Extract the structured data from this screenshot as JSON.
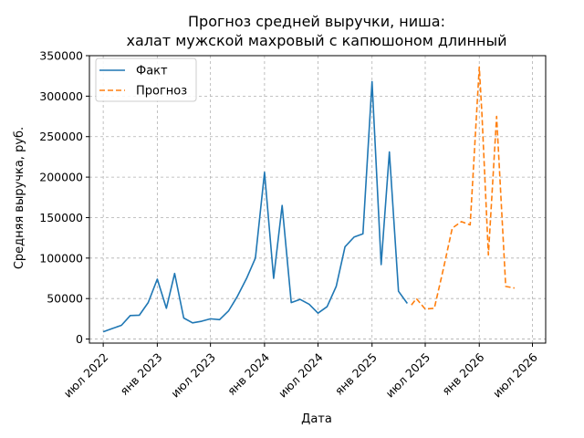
{
  "chart_data": {
    "type": "line",
    "title": [
      "Прогноз средней выручки, ниша:",
      "халат мужской махровый с капюшоном длинный"
    ],
    "xlabel": "Дата",
    "ylabel": "Средняя выручка, руб.",
    "ylim": [
      -5000,
      350000
    ],
    "yticks": [
      0,
      50000,
      100000,
      150000,
      200000,
      250000,
      300000,
      350000
    ],
    "xlim": [
      "2022-05-15",
      "2026-08-15"
    ],
    "xticks": [
      {
        "date": "2022-07-01",
        "label": "июл 2022"
      },
      {
        "date": "2023-01-01",
        "label": "янв 2023"
      },
      {
        "date": "2023-07-01",
        "label": "июл 2023"
      },
      {
        "date": "2024-01-01",
        "label": "янв 2024"
      },
      {
        "date": "2024-07-01",
        "label": "июл 2024"
      },
      {
        "date": "2025-01-01",
        "label": "янв 2025"
      },
      {
        "date": "2025-07-01",
        "label": "июл 2025"
      },
      {
        "date": "2026-01-01",
        "label": "янв 2026"
      },
      {
        "date": "2026-07-01",
        "label": "июл 2026"
      }
    ],
    "grid": true,
    "legend": "top-left",
    "series": [
      {
        "name": "Факт",
        "color": "#1f77b4",
        "style": "solid",
        "points": [
          [
            "2022-07-01",
            9000
          ],
          [
            "2022-08-01",
            13000
          ],
          [
            "2022-09-01",
            17000
          ],
          [
            "2022-10-01",
            29000
          ],
          [
            "2022-11-01",
            29500
          ],
          [
            "2022-12-01",
            45000
          ],
          [
            "2023-01-01",
            74000
          ],
          [
            "2023-02-01",
            38000
          ],
          [
            "2023-03-01",
            81000
          ],
          [
            "2023-04-01",
            26000
          ],
          [
            "2023-05-01",
            20000
          ],
          [
            "2023-06-01",
            22000
          ],
          [
            "2023-07-01",
            25000
          ],
          [
            "2023-08-01",
            24000
          ],
          [
            "2023-09-01",
            35000
          ],
          [
            "2023-10-01",
            53000
          ],
          [
            "2023-11-01",
            75000
          ],
          [
            "2023-12-01",
            100000
          ],
          [
            "2024-01-01",
            206000
          ],
          [
            "2024-02-01",
            75000
          ],
          [
            "2024-03-01",
            165000
          ],
          [
            "2024-04-01",
            45000
          ],
          [
            "2024-05-01",
            49000
          ],
          [
            "2024-06-01",
            43000
          ],
          [
            "2024-07-01",
            32000
          ],
          [
            "2024-08-01",
            40000
          ],
          [
            "2024-09-01",
            65000
          ],
          [
            "2024-10-01",
            114000
          ],
          [
            "2024-11-01",
            126000
          ],
          [
            "2024-12-01",
            130000
          ],
          [
            "2025-01-01",
            318000
          ],
          [
            "2025-02-01",
            92000
          ],
          [
            "2025-03-01",
            231000
          ],
          [
            "2025-04-01",
            59000
          ],
          [
            "2025-05-01",
            44000
          ]
        ]
      },
      {
        "name": "Прогноз",
        "color": "#ff7f0e",
        "style": "dashed",
        "points": [
          [
            "2025-05-15",
            42000
          ],
          [
            "2025-06-01",
            50000
          ],
          [
            "2025-07-01",
            37000
          ],
          [
            "2025-08-01",
            38000
          ],
          [
            "2025-09-01",
            87000
          ],
          [
            "2025-10-01",
            137000
          ],
          [
            "2025-11-01",
            145000
          ],
          [
            "2025-12-01",
            141000
          ],
          [
            "2026-01-01",
            336000
          ],
          [
            "2026-01-10",
            278000
          ],
          [
            "2026-02-01",
            104000
          ],
          [
            "2026-03-01",
            275000
          ],
          [
            "2026-04-01",
            65000
          ],
          [
            "2026-05-01",
            63000
          ]
        ]
      }
    ]
  }
}
